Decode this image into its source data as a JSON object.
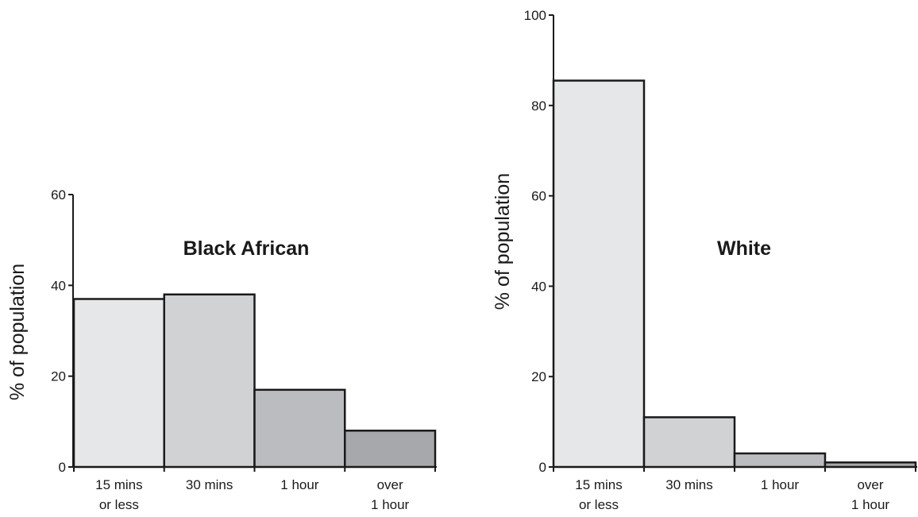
{
  "chart_data": [
    {
      "type": "bar",
      "title": "Black African",
      "ylabel": "% of population",
      "xlabel": "",
      "ylim": [
        0,
        60
      ],
      "yticks": [
        0,
        20,
        40,
        60
      ],
      "categories": [
        [
          "15 mins",
          "or less"
        ],
        [
          "30 mins"
        ],
        [
          "1 hour"
        ],
        [
          "over",
          "1 hour"
        ]
      ],
      "values": [
        37,
        38,
        17,
        8
      ],
      "bar_colors": [
        "#e6e7e9",
        "#d1d2d4",
        "#bbbcbf",
        "#a7a8ab"
      ],
      "grid": false,
      "legend": "none"
    },
    {
      "type": "bar",
      "title": "White",
      "ylabel": "% of population",
      "xlabel": "",
      "ylim": [
        0,
        100
      ],
      "yticks": [
        0,
        20,
        40,
        60,
        80,
        100
      ],
      "categories": [
        [
          "15 mins",
          "or less"
        ],
        [
          "30 mins"
        ],
        [
          "1 hour"
        ],
        [
          "over",
          "1 hour"
        ]
      ],
      "values": [
        85.5,
        11,
        3,
        1
      ],
      "bar_colors": [
        "#e6e7e9",
        "#d1d2d4",
        "#bbbcbf",
        "#a7a8ab"
      ],
      "grid": false,
      "legend": "none"
    }
  ]
}
